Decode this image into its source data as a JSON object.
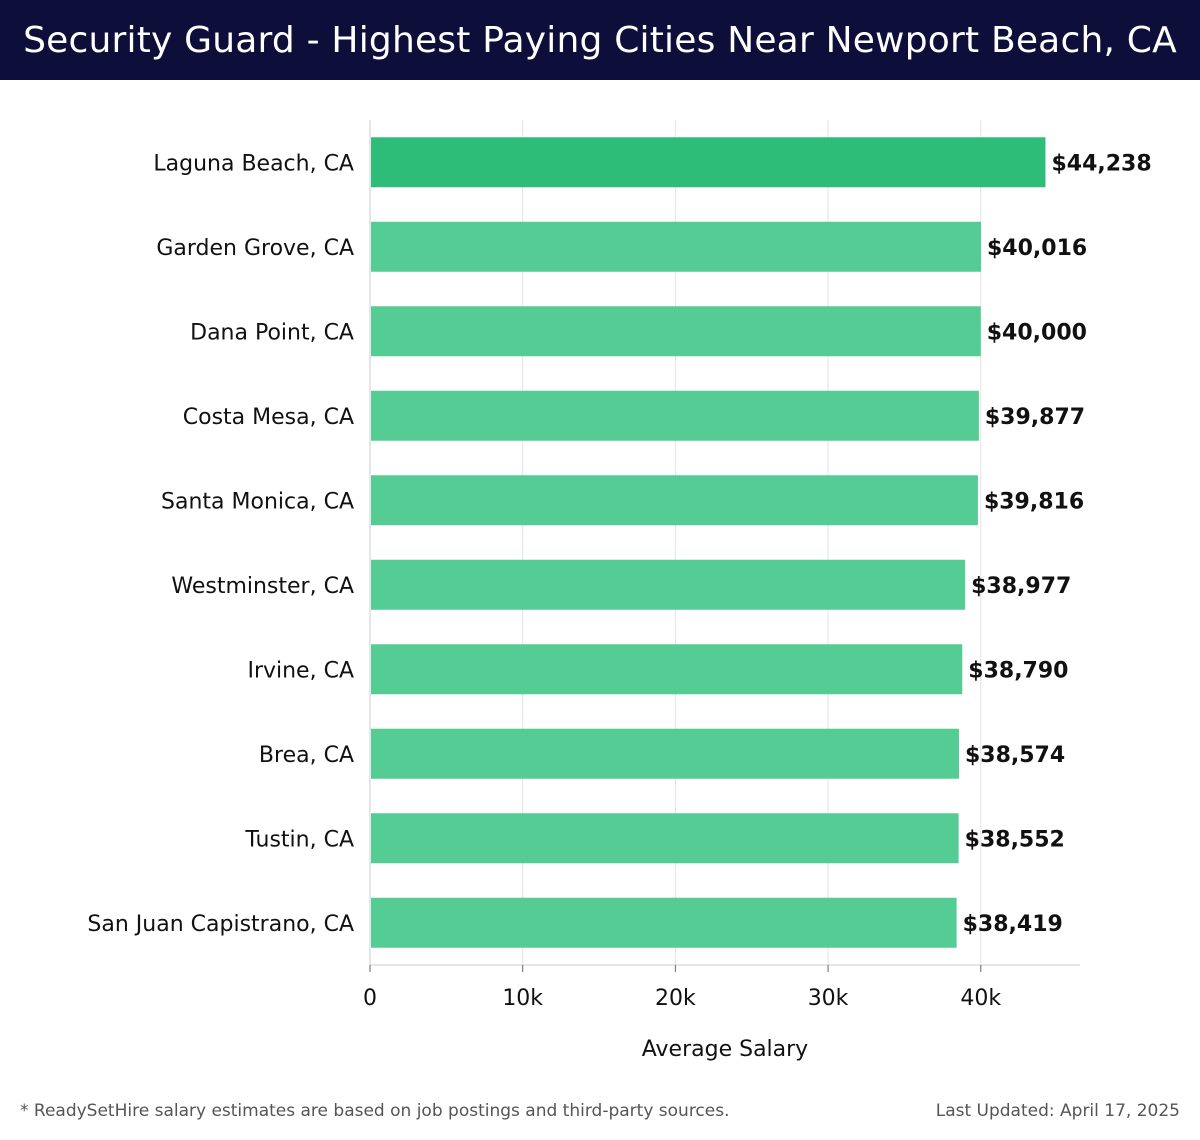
{
  "header": {
    "title": "Security Guard - Highest Paying Cities Near Newport Beach, CA"
  },
  "chart_data": {
    "type": "bar",
    "orientation": "horizontal",
    "categories": [
      "Laguna Beach, CA",
      "Garden Grove, CA",
      "Dana Point, CA",
      "Costa Mesa, CA",
      "Santa Monica, CA",
      "Westminster, CA",
      "Irvine, CA",
      "Brea, CA",
      "Tustin, CA",
      "San Juan Capistrano, CA"
    ],
    "values": [
      44238,
      40016,
      40000,
      39877,
      39816,
      38977,
      38790,
      38574,
      38552,
      38419
    ],
    "value_labels": [
      "$44,238",
      "$40,016",
      "$40,000",
      "$39,877",
      "$39,816",
      "$38,977",
      "$38,790",
      "$38,574",
      "$38,552",
      "$38,419"
    ],
    "xlabel": "Average Salary",
    "ylabel": "",
    "xlim": [
      0,
      46500
    ],
    "xticks": [
      0,
      10000,
      20000,
      30000,
      40000
    ],
    "xtick_labels": [
      "0",
      "10k",
      "20k",
      "30k",
      "40k"
    ],
    "grid": true,
    "colors": {
      "top_bar": "#2ebd78",
      "bar": "#55cc94",
      "grid": "#e3e3e3",
      "axis": "#cccccc"
    }
  },
  "footer": {
    "note": "* ReadySetHire salary estimates are based on job postings and third-party sources.",
    "updated": "Last Updated: April 17, 2025"
  }
}
